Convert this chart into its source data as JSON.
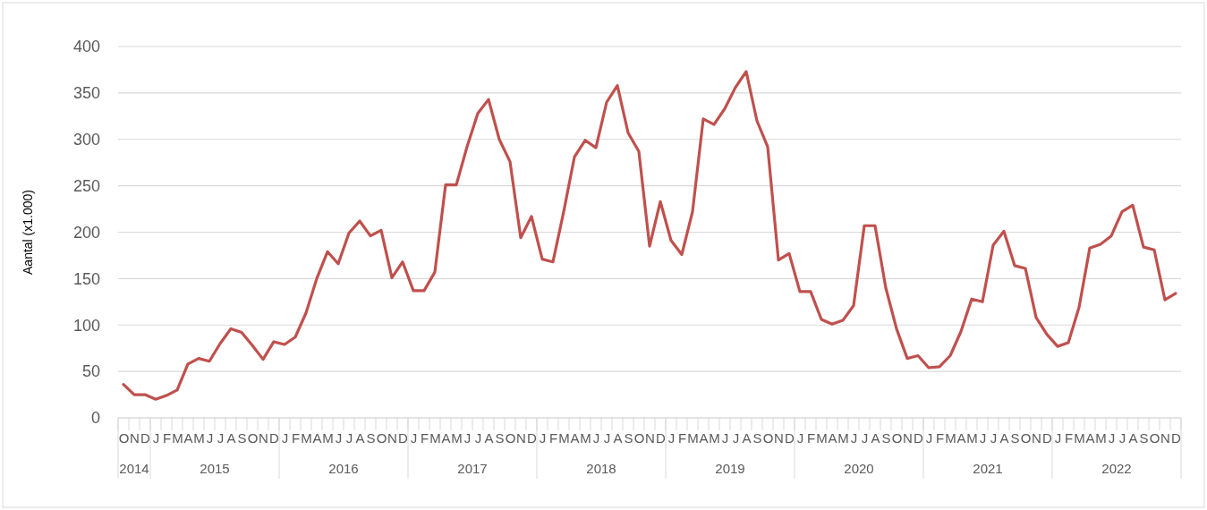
{
  "chart_data": {
    "type": "line",
    "ylabel": "Aantal (x1.000)",
    "categories": [
      "O",
      "N",
      "D",
      "J",
      "F",
      "M",
      "A",
      "M",
      "J",
      "J",
      "A",
      "S",
      "O",
      "N",
      "D",
      "J",
      "F",
      "M",
      "A",
      "M",
      "J",
      "J",
      "A",
      "S",
      "O",
      "N",
      "D",
      "J",
      "F",
      "M",
      "A",
      "M",
      "J",
      "J",
      "A",
      "S",
      "O",
      "N",
      "D",
      "J",
      "F",
      "M",
      "A",
      "M",
      "J",
      "J",
      "A",
      "S",
      "O",
      "N",
      "D",
      "J",
      "F",
      "M",
      "A",
      "M",
      "J",
      "J",
      "A",
      "S",
      "O",
      "N",
      "D",
      "J",
      "F",
      "M",
      "A",
      "M",
      "J",
      "J",
      "A",
      "S",
      "O",
      "N",
      "D",
      "J",
      "F",
      "M",
      "A",
      "M",
      "J",
      "J",
      "A",
      "S",
      "O",
      "N",
      "D",
      "J",
      "F",
      "M",
      "A",
      "M",
      "J",
      "J",
      "A",
      "S",
      "O",
      "N",
      "D"
    ],
    "series": [
      {
        "color": "#c0504d",
        "values": [
          36,
          25,
          25,
          20,
          24,
          30,
          58,
          64,
          61,
          80,
          96,
          92,
          78,
          63,
          82,
          79,
          87,
          113,
          150,
          179,
          166,
          199,
          212,
          196,
          202,
          151,
          168,
          137,
          137,
          157,
          251,
          251,
          292,
          328,
          343,
          300,
          276,
          194,
          217,
          171,
          168,
          222,
          281,
          299,
          291,
          340,
          358,
          307,
          287,
          185,
          233,
          191,
          176,
          222,
          322,
          316,
          333,
          356,
          373,
          320,
          292,
          170,
          177,
          136,
          136,
          106,
          101,
          105,
          121,
          207,
          207,
          140,
          96,
          64,
          67,
          54,
          55,
          67,
          93,
          128,
          125,
          186,
          201,
          164,
          161,
          108,
          90,
          77,
          81,
          119,
          183,
          187,
          196,
          222,
          229,
          184,
          181,
          127,
          134
        ]
      }
    ],
    "annotations": [
      "2014",
      "2015",
      "2016",
      "2017",
      "2018",
      "2019",
      "2020",
      "2021",
      "2022"
    ],
    "ylim": [
      0,
      400
    ],
    "yticks": [
      0,
      50,
      100,
      150,
      200,
      250,
      300,
      350,
      400
    ],
    "grid": "y",
    "line_style": "solid"
  }
}
